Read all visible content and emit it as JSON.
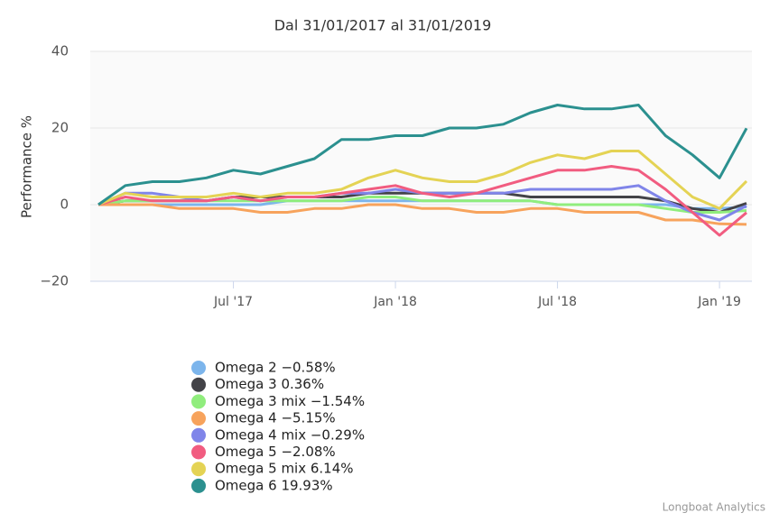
{
  "chart_data": {
    "type": "line",
    "title": "Dal 31/01/2017 al 31/01/2019",
    "y_label": "Performance %",
    "credit": "Longboat Analytics",
    "x": [
      0,
      1,
      2,
      3,
      4,
      5,
      6,
      7,
      8,
      9,
      10,
      11,
      12,
      13,
      14,
      15,
      16,
      17,
      18,
      19,
      20,
      21,
      22,
      23,
      24
    ],
    "xlim": [
      -0.3,
      24.2
    ],
    "xticks": [
      {
        "value": 5,
        "label": "Jul '17"
      },
      {
        "value": 11,
        "label": "Jan '18"
      },
      {
        "value": 17,
        "label": "Jul '18"
      },
      {
        "value": 23,
        "label": "Jan '19"
      }
    ],
    "ylim": [
      -20,
      40
    ],
    "yticks": [
      {
        "value": -20,
        "label": "−20"
      },
      0,
      20,
      40
    ],
    "grid": true,
    "series": [
      {
        "name": "Omega 2 −0.58%",
        "color": "#7cb5ec",
        "values": [
          0,
          0,
          0,
          0,
          0,
          0,
          0,
          1,
          1,
          1,
          1,
          1,
          1,
          1,
          1,
          1,
          1,
          0,
          0,
          0,
          0,
          0,
          -1,
          -1,
          -0.58
        ]
      },
      {
        "name": "Omega 3 0.36%",
        "color": "#434348",
        "values": [
          0,
          1,
          1,
          1,
          1,
          2,
          2,
          2,
          2,
          2,
          3,
          3,
          3,
          3,
          3,
          3,
          2,
          2,
          2,
          2,
          2,
          1,
          -1,
          -2,
          0.36
        ]
      },
      {
        "name": "Omega 3 mix −1.54%",
        "color": "#90ed7d",
        "values": [
          0,
          1,
          1,
          1,
          1,
          1,
          1,
          1,
          1,
          1,
          2,
          2,
          1,
          1,
          1,
          1,
          1,
          0,
          0,
          0,
          0,
          -1,
          -2,
          -2,
          -1.54
        ]
      },
      {
        "name": "Omega 4 −5.15%",
        "color": "#f7a35c",
        "values": [
          0,
          0,
          0,
          -1,
          -1,
          -1,
          -2,
          -2,
          -1,
          -1,
          0,
          0,
          -1,
          -1,
          -2,
          -2,
          -1,
          -1,
          -2,
          -2,
          -2,
          -4,
          -4,
          -5,
          -5.15
        ]
      },
      {
        "name": "Omega 4 mix −0.29%",
        "color": "#8085e9",
        "values": [
          0,
          3,
          3,
          2,
          1,
          2,
          1,
          2,
          2,
          3,
          3,
          4,
          3,
          3,
          3,
          3,
          4,
          4,
          4,
          4,
          5,
          1,
          -2,
          -4,
          -0.29
        ]
      },
      {
        "name": "Omega 5 −2.08%",
        "color": "#f15c80",
        "values": [
          0,
          2,
          1,
          1,
          1,
          2,
          1,
          2,
          2,
          3,
          4,
          5,
          3,
          2,
          3,
          5,
          7,
          9,
          9,
          10,
          9,
          4,
          -2,
          -8,
          -2.08
        ]
      },
      {
        "name": "Omega 5 mix 6.14%",
        "color": "#e4d354",
        "values": [
          0,
          3,
          2,
          2,
          2,
          3,
          2,
          3,
          3,
          4,
          7,
          9,
          7,
          6,
          6,
          8,
          11,
          13,
          12,
          14,
          14,
          8,
          2,
          -1,
          6.14
        ]
      },
      {
        "name": "Omega 6 19.93%",
        "color": "#2b908f",
        "values": [
          0,
          5,
          6,
          6,
          7,
          9,
          8,
          10,
          12,
          17,
          17,
          18,
          18,
          20,
          20,
          21,
          24,
          26,
          25,
          25,
          26,
          18,
          13,
          7,
          19.93
        ]
      }
    ]
  }
}
